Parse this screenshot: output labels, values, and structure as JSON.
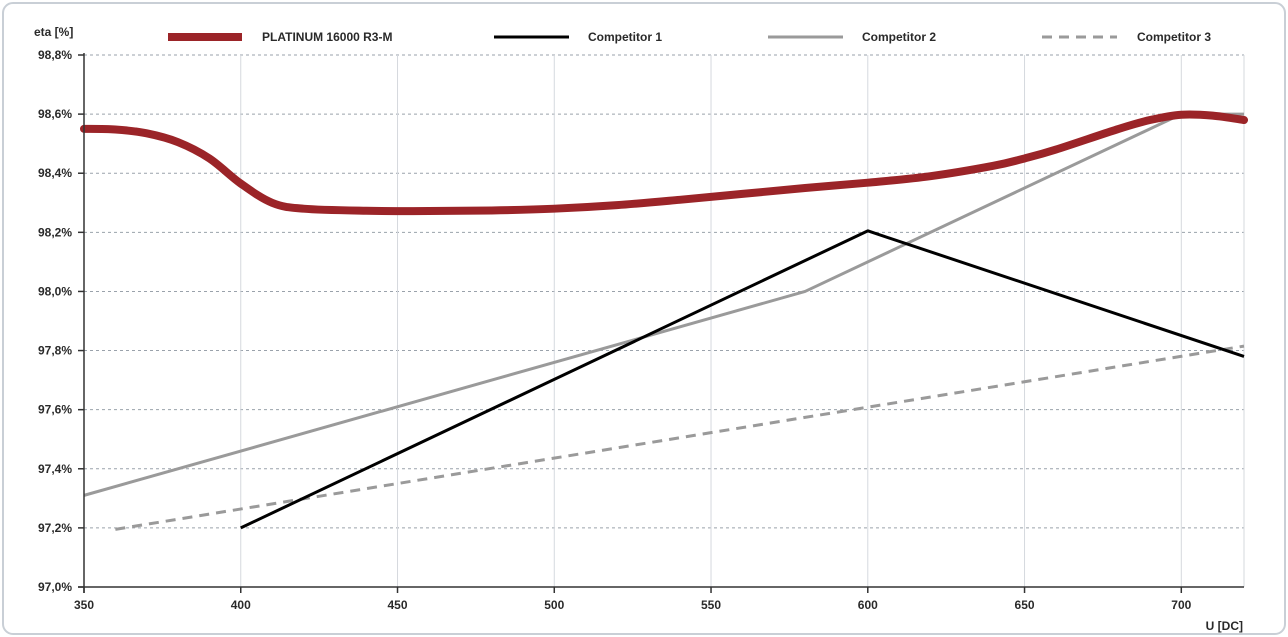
{
  "chart_data": {
    "type": "line",
    "xlabel": "U [DC]",
    "ylabel": "eta [%]",
    "xlim": [
      350,
      720
    ],
    "ylim": [
      97.0,
      98.8
    ],
    "x_ticks": [
      350,
      400,
      450,
      500,
      550,
      600,
      650,
      700
    ],
    "x_tick_labels": [
      "350",
      "400",
      "450",
      "500",
      "550",
      "600",
      "650",
      "700"
    ],
    "y_ticks": [
      97.0,
      97.2,
      97.4,
      97.6,
      97.8,
      98.0,
      98.2,
      98.4,
      98.6,
      98.8
    ],
    "y_tick_labels": [
      "97,0%",
      "97,2%",
      "97,4%",
      "97,6%",
      "97,8%",
      "98,0%",
      "98,2%",
      "98,4%",
      "98,6%",
      "98,8%"
    ],
    "grid": true,
    "legend_position": "top",
    "series": [
      {
        "name": "PLATINUM 16000 R3-M",
        "color": "#9b2428",
        "style": "solid-thick",
        "x": [
          350,
          360,
          370,
          380,
          390,
          400,
          410,
          420,
          440,
          460,
          480,
          500,
          520,
          540,
          560,
          580,
          600,
          620,
          640,
          650,
          660,
          680,
          690,
          700,
          710,
          720
        ],
        "y": [
          98.55,
          98.548,
          98.535,
          98.505,
          98.45,
          98.365,
          98.3,
          98.28,
          98.273,
          98.272,
          98.274,
          98.28,
          98.292,
          98.31,
          98.33,
          98.35,
          98.368,
          98.39,
          98.425,
          98.45,
          98.48,
          98.55,
          98.58,
          98.598,
          98.595,
          98.58
        ]
      },
      {
        "name": "Competitor 1",
        "color": "#000000",
        "style": "solid",
        "x": [
          400,
          600,
          720
        ],
        "y": [
          97.2,
          98.205,
          97.78
        ]
      },
      {
        "name": "Competitor 2",
        "color": "#9a9a9a",
        "style": "solid",
        "x": [
          350,
          580,
          700,
          720
        ],
        "y": [
          97.31,
          98.0,
          98.6,
          98.6
        ]
      },
      {
        "name": "Competitor 3",
        "color": "#9a9a9a",
        "style": "dashed",
        "x": [
          360,
          720
        ],
        "y": [
          97.195,
          97.815
        ]
      }
    ]
  }
}
